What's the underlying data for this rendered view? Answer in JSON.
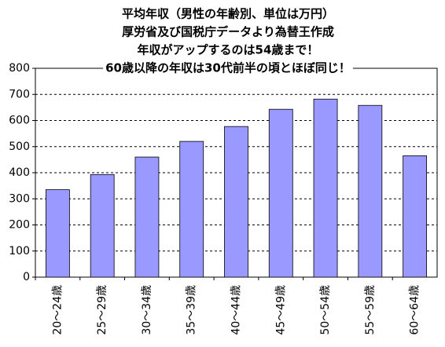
{
  "chart_data": {
    "type": "bar",
    "title": [
      "平均年収（男性の年齢別、単位は万円）",
      "厚労省及び国税庁データより為替王作成",
      "年収がアップするのは54歳まで！",
      "60歳以降の年収は30代前半の頃とほぼ同じ！"
    ],
    "categories": [
      "20～24歳",
      "25～29歳",
      "30～34歳",
      "35～39歳",
      "40～44歳",
      "45～49歳",
      "50～54歳",
      "55～59歳",
      "60～64歳"
    ],
    "values": [
      335,
      393,
      460,
      520,
      577,
      643,
      682,
      658,
      465
    ],
    "color": "#9999ff",
    "ylim": [
      0,
      800
    ],
    "yticks": [
      0,
      100,
      200,
      300,
      400,
      500,
      600,
      700,
      800
    ],
    "grid": true
  }
}
